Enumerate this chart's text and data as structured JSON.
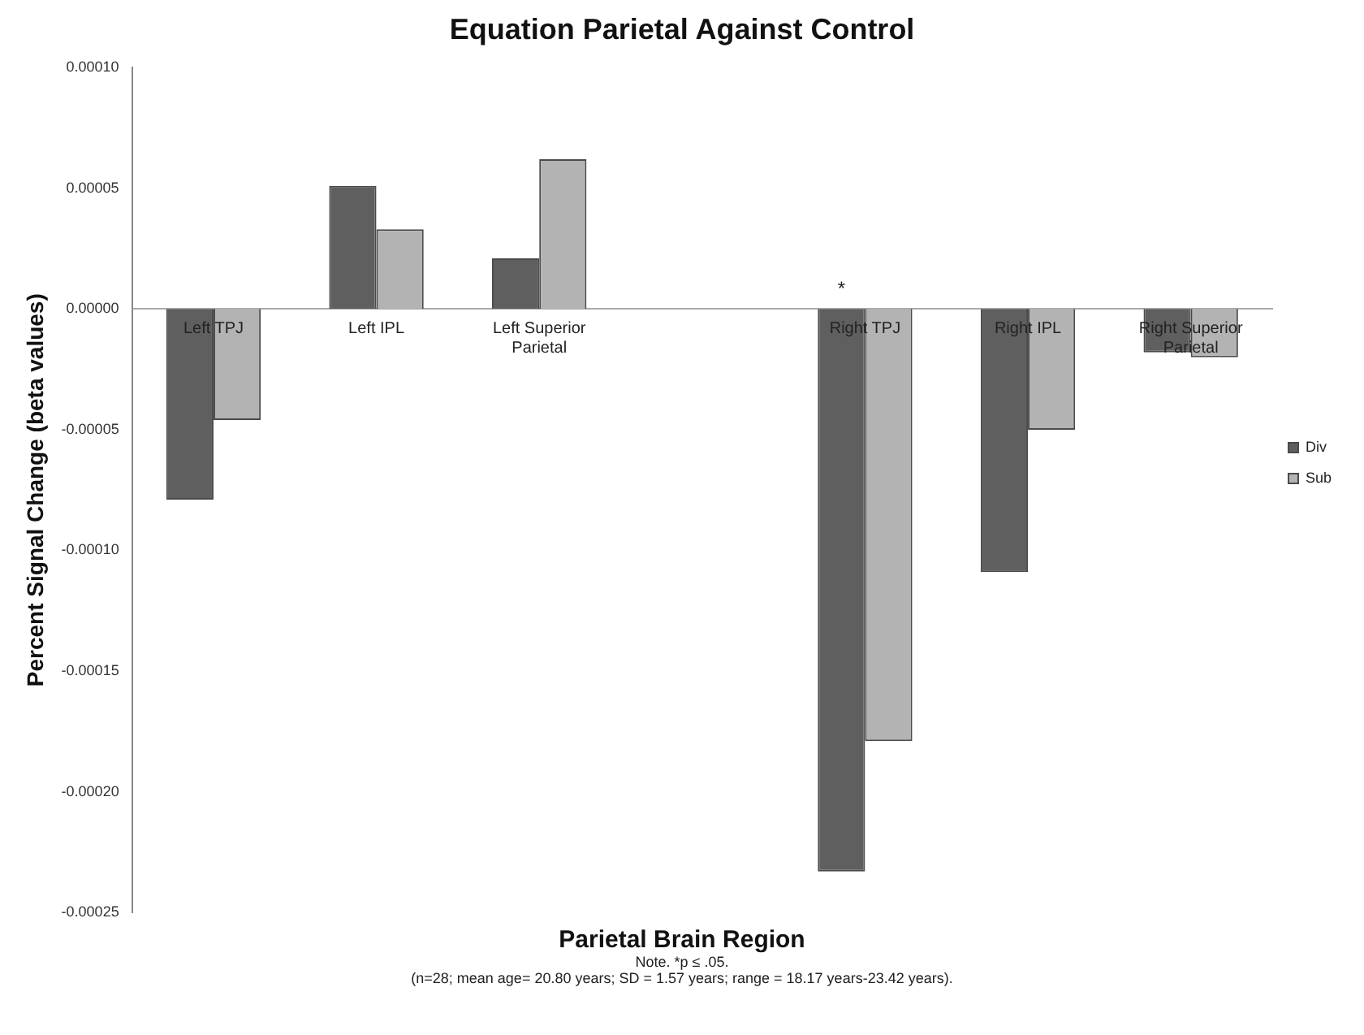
{
  "chart_data": {
    "type": "bar",
    "title": "Equation Parietal Against Control",
    "xlabel": "Parietal Brain Region",
    "ylabel": "Percent Signal Change (beta values)",
    "categories": [
      "Left TPJ",
      "Left IPL",
      "Left Superior Parietal",
      null,
      "Right TPJ",
      "Right IPL",
      "Right Superior Parietal"
    ],
    "series": [
      {
        "name": "Div",
        "color": "#5f5f5f",
        "values": [
          -7.9e-05,
          5.1e-05,
          2.1e-05,
          null,
          -0.000233,
          -0.000109,
          -1.8e-05
        ]
      },
      {
        "name": "Sub",
        "color": "#b3b3b3",
        "values": [
          -4.6e-05,
          3.3e-05,
          6.2e-05,
          null,
          -0.000179,
          -5e-05,
          -2e-05
        ]
      }
    ],
    "ylim": [
      -0.00025,
      0.0001
    ],
    "yticks": [
      {
        "value": -0.00025,
        "label": "-0.00025"
      },
      {
        "value": -0.0002,
        "label": "-0.00020"
      },
      {
        "value": -0.00015,
        "label": "-0.00015"
      },
      {
        "value": -0.0001,
        "label": "-0.00010"
      },
      {
        "value": -5e-05,
        "label": "-0.00005"
      },
      {
        "value": 0,
        "label": "0.00000"
      },
      {
        "value": 5e-05,
        "label": "0.00005"
      },
      {
        "value": 0.0001,
        "label": "0.00010"
      }
    ],
    "grid": false,
    "legend": "right",
    "annotations": [
      "*",
      "Note. *p ≤ .05.",
      "(n=28; mean age= 20.80 years; SD = 1.57 years; range = 18.17 years-23.42 years)."
    ]
  }
}
